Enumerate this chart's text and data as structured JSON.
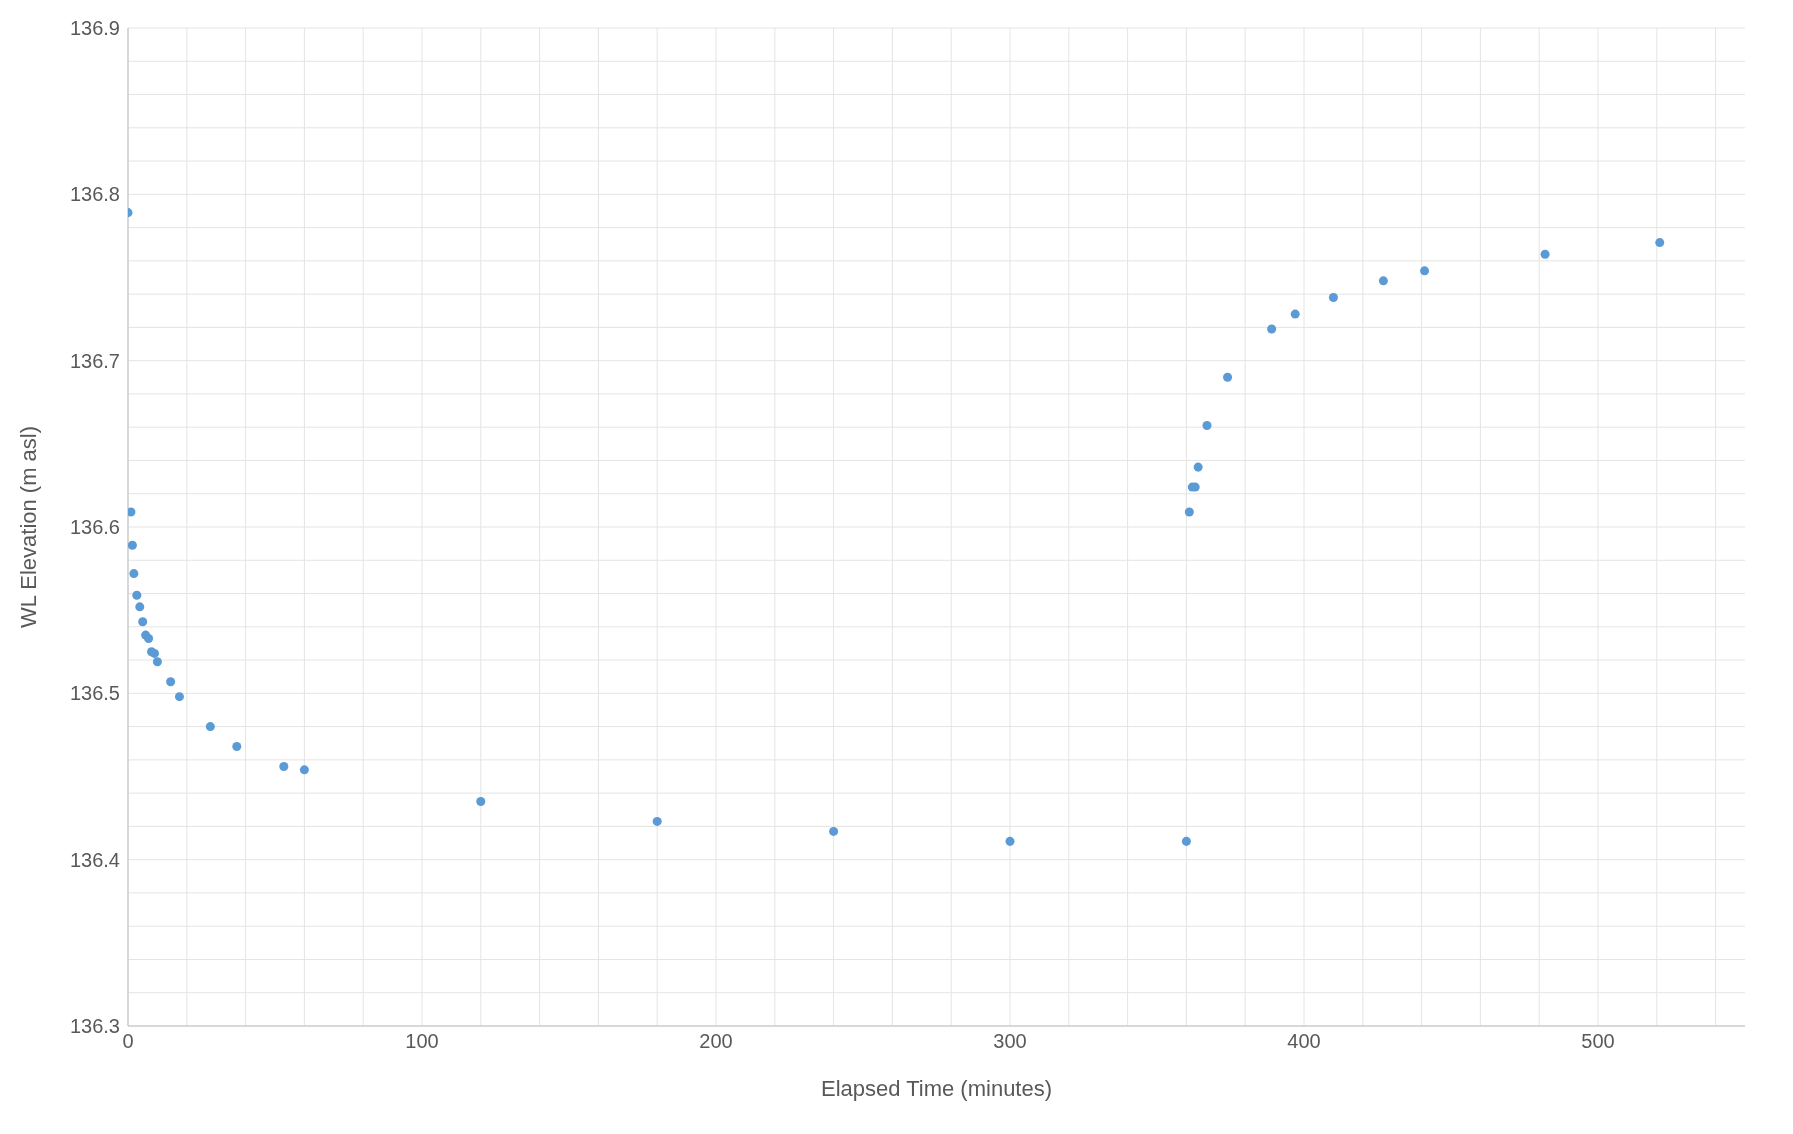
{
  "chart_data": {
    "type": "scatter",
    "xlabel": "Elapsed Time (minutes)",
    "ylabel": "WL Elevation (m asl)",
    "x": [
      0,
      1,
      1.5,
      2,
      3,
      4,
      5,
      6,
      7,
      8,
      9,
      10,
      14.5,
      17.5,
      28,
      37,
      53,
      60,
      120,
      180,
      240,
      300,
      360,
      361,
      362,
      363,
      364,
      367,
      374,
      389,
      397,
      410,
      427,
      441,
      482,
      521
    ],
    "series": [
      {
        "color": "#5b9bd5",
        "values": [
          136.789,
          136.609,
          136.589,
          136.572,
          136.559,
          136.552,
          136.543,
          136.535,
          136.533,
          136.525,
          136.524,
          136.519,
          136.507,
          136.498,
          136.48,
          136.468,
          136.456,
          136.454,
          136.435,
          136.423,
          136.417,
          136.411,
          136.411,
          136.609,
          136.624,
          136.624,
          136.636,
          136.661,
          136.69,
          136.719,
          136.728,
          136.738,
          136.748,
          136.754,
          136.764,
          136.771
        ]
      }
    ],
    "xlim": [
      0,
      550
    ],
    "xticks": [
      0,
      {
        "value": 20,
        "label": null
      },
      {
        "value": 40,
        "label": null
      },
      {
        "value": 60,
        "label": null
      },
      {
        "value": 80,
        "label": null
      },
      100,
      {
        "value": 120,
        "label": null
      },
      {
        "value": 140,
        "label": null
      },
      {
        "value": 160,
        "label": null
      },
      {
        "value": 180,
        "label": null
      },
      200,
      {
        "value": 220,
        "label": null
      },
      {
        "value": 240,
        "label": null
      },
      {
        "value": 260,
        "label": null
      },
      {
        "value": 280,
        "label": null
      },
      300,
      {
        "value": 320,
        "label": null
      },
      {
        "value": 340,
        "label": null
      },
      {
        "value": 360,
        "label": null
      },
      {
        "value": 380,
        "label": null
      },
      400,
      {
        "value": 420,
        "label": null
      },
      {
        "value": 440,
        "label": null
      },
      {
        "value": 460,
        "label": null
      },
      {
        "value": 480,
        "label": null
      },
      500,
      {
        "value": 520,
        "label": null
      },
      {
        "value": 540,
        "label": null
      }
    ],
    "ylim": [
      136.3,
      136.9
    ],
    "yticks": [
      136.3,
      {
        "value": 136.32,
        "label": null
      },
      {
        "value": 136.34,
        "label": null
      },
      {
        "value": 136.36,
        "label": null
      },
      {
        "value": 136.38,
        "label": null
      },
      136.4,
      {
        "value": 136.42,
        "label": null
      },
      {
        "value": 136.44,
        "label": null
      },
      {
        "value": 136.46,
        "label": null
      },
      {
        "value": 136.48,
        "label": null
      },
      136.5,
      {
        "value": 136.52,
        "label": null
      },
      {
        "value": 136.54,
        "label": null
      },
      {
        "value": 136.56,
        "label": null
      },
      {
        "value": 136.58,
        "label": null
      },
      136.6,
      {
        "value": 136.62,
        "label": null
      },
      {
        "value": 136.64,
        "label": null
      },
      {
        "value": 136.66,
        "label": null
      },
      {
        "value": 136.68,
        "label": null
      },
      136.7,
      {
        "value": 136.72,
        "label": null
      },
      {
        "value": 136.74,
        "label": null
      },
      {
        "value": 136.76,
        "label": null
      },
      {
        "value": 136.78,
        "label": null
      },
      136.8,
      {
        "value": 136.82,
        "label": null
      },
      {
        "value": 136.84,
        "label": null
      },
      {
        "value": 136.86,
        "label": null
      },
      {
        "value": 136.88,
        "label": null
      },
      136.9
    ],
    "grid": true,
    "marker": "circle",
    "legend": false
  }
}
